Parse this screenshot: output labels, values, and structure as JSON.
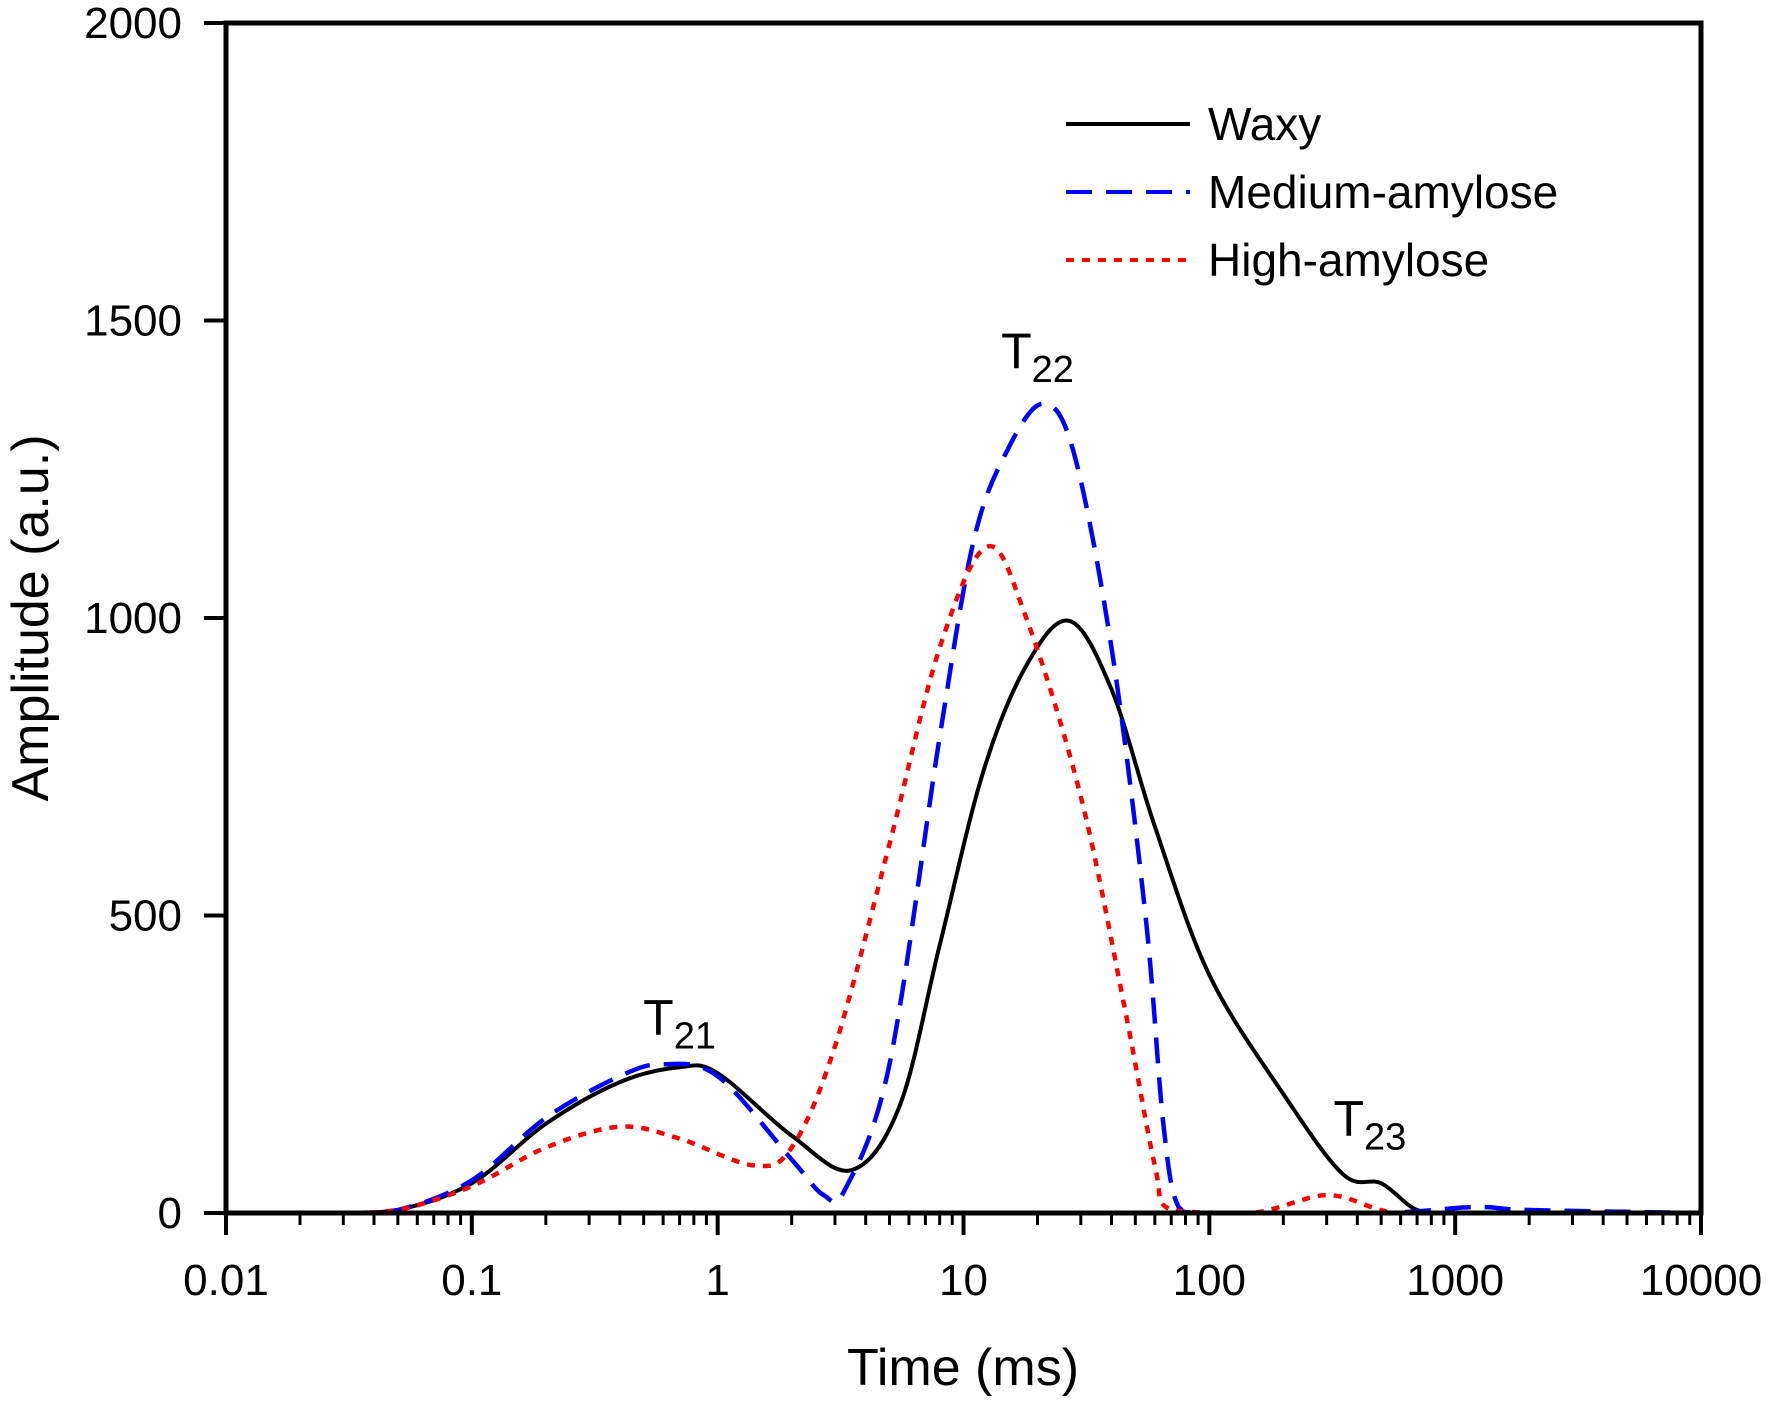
{
  "chart_data": {
    "type": "line",
    "title": "",
    "xlabel": "Time (ms)",
    "ylabel": "Amplitude (a.u.)",
    "xscale": "log",
    "xlim": [
      0.01,
      10000
    ],
    "ylim": [
      0,
      2000
    ],
    "xticks": [
      0.01,
      0.1,
      1,
      10,
      100,
      1000,
      10000
    ],
    "xtick_labels": [
      "0.01",
      "0.1",
      "1",
      "10",
      "100",
      "1000",
      "10000"
    ],
    "yticks": [
      0,
      500,
      1000,
      1500,
      2000
    ],
    "ytick_labels": [
      "0",
      "500",
      "1000",
      "1500",
      "2000"
    ],
    "grid": false,
    "legend_position": "top-right",
    "series": [
      {
        "name": "Waxy",
        "color": "#000000",
        "style": "solid",
        "x": [
          0.01,
          0.03,
          0.05,
          0.1,
          0.2,
          0.4,
          0.7,
          1,
          2,
          3.5,
          5.5,
          8,
          12,
          18,
          27,
          40,
          60,
          100,
          200,
          350,
          500,
          700,
          1000,
          10000
        ],
        "y": [
          0,
          0,
          5,
          50,
          150,
          220,
          245,
          235,
          130,
          72,
          180,
          450,
          740,
          920,
          995,
          880,
          650,
          400,
          200,
          65,
          50,
          5,
          0,
          0
        ]
      },
      {
        "name": "Medium-amylose",
        "color": "#0000ff",
        "style": "dashed",
        "x": [
          0.01,
          0.03,
          0.05,
          0.1,
          0.2,
          0.4,
          0.6,
          1,
          2,
          2.7,
          3.3,
          5,
          8,
          11,
          15,
          21,
          28,
          40,
          55,
          65,
          75,
          100,
          500,
          1200,
          2000,
          10000
        ],
        "y": [
          0,
          0,
          5,
          55,
          160,
          230,
          250,
          230,
          90,
          30,
          40,
          250,
          800,
          1130,
          1280,
          1360,
          1280,
          950,
          500,
          150,
          10,
          0,
          0,
          10,
          5,
          0
        ]
      },
      {
        "name": "High-amylose",
        "color": "#ff0000",
        "style": "dotted",
        "x": [
          0.01,
          0.03,
          0.05,
          0.1,
          0.2,
          0.4,
          0.7,
          1.4,
          2,
          3,
          5,
          8,
          12.5,
          18,
          30,
          45,
          60,
          70,
          150,
          300,
          500,
          700,
          10000
        ],
        "y": [
          0,
          0,
          5,
          45,
          110,
          145,
          125,
          80,
          110,
          280,
          620,
          950,
          1120,
          1000,
          700,
          350,
          80,
          5,
          0,
          30,
          5,
          0,
          0
        ]
      }
    ],
    "annotations": [
      {
        "main": "T",
        "sub": "21",
        "x": 0.7,
        "y": 300
      },
      {
        "main": "T",
        "sub": "22",
        "x": 20,
        "y": 1420
      },
      {
        "main": "T",
        "sub": "23",
        "x": 450,
        "y": 130
      }
    ]
  }
}
